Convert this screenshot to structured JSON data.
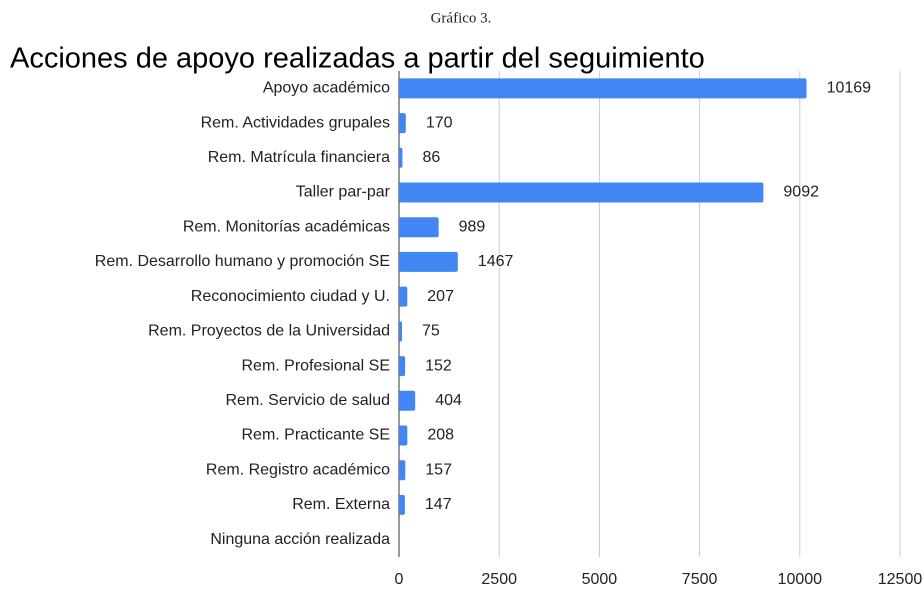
{
  "chart_data": {
    "type": "barh",
    "caption": "Gráfico 3.",
    "title": "Acciones de apoyo realizadas a partir del seguimiento",
    "categories": [
      "Apoyo académico",
      "Rem. Actividades grupales",
      "Rem. Matrícula financiera",
      "Taller par-par",
      "Rem. Monitorías académicas",
      "Rem. Desarrollo humano y promoción SE",
      "Reconocimiento ciudad y U.",
      "Rem. Proyectos de la Universidad",
      "Rem. Profesional SE",
      "Rem. Servicio de salud",
      "Rem. Practicante SE",
      "Rem. Registro académico",
      "Rem. Externa",
      "Ninguna acción realizada"
    ],
    "values": [
      10169,
      170,
      86,
      9092,
      989,
      1467,
      207,
      75,
      152,
      404,
      208,
      157,
      147,
      null
    ],
    "color": "#4285f4",
    "label_color": "#4a86e8",
    "xlim": [
      0,
      12500
    ],
    "xticks": [
      0,
      2500,
      5000,
      7500,
      10000,
      12500
    ],
    "grid": true
  }
}
